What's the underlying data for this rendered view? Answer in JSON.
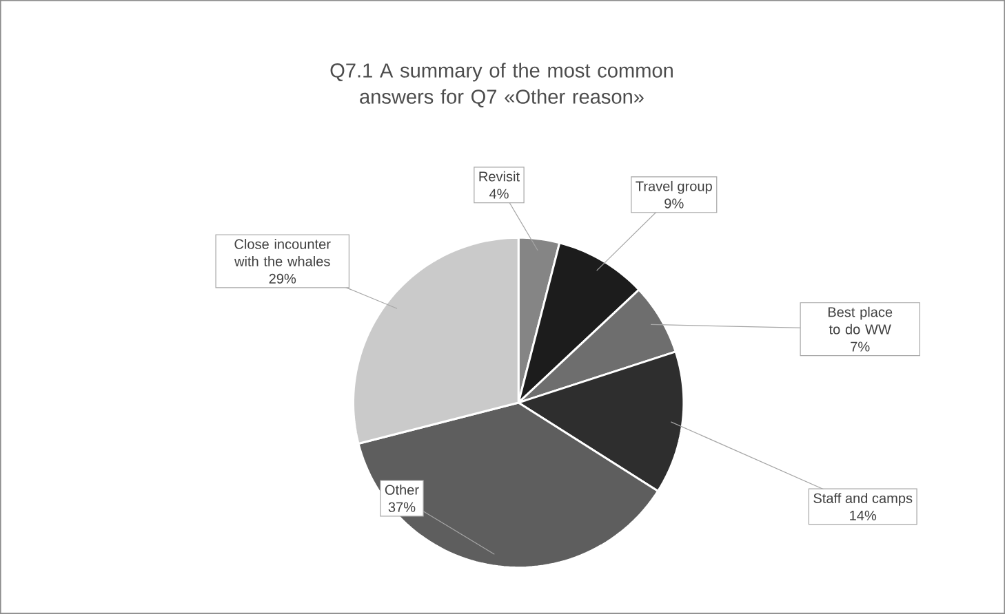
{
  "chart_data": {
    "type": "pie",
    "title": "Q7.1 A summary of the most common answers for Q7 «Other reason»",
    "categories": [
      "Revisit",
      "Travel group",
      "Best place to do WW",
      "Staff and camps",
      "Other",
      "Close incounter with the whales"
    ],
    "values": [
      4,
      9,
      7,
      14,
      37,
      29
    ],
    "value_labels": [
      "4%",
      "9%",
      "7%",
      "14%",
      "37%",
      "29%"
    ],
    "colors": [
      "#858585",
      "#1c1c1c",
      "#6e6e6e",
      "#2e2e2e",
      "#5e5e5e",
      "#cacaca"
    ]
  }
}
